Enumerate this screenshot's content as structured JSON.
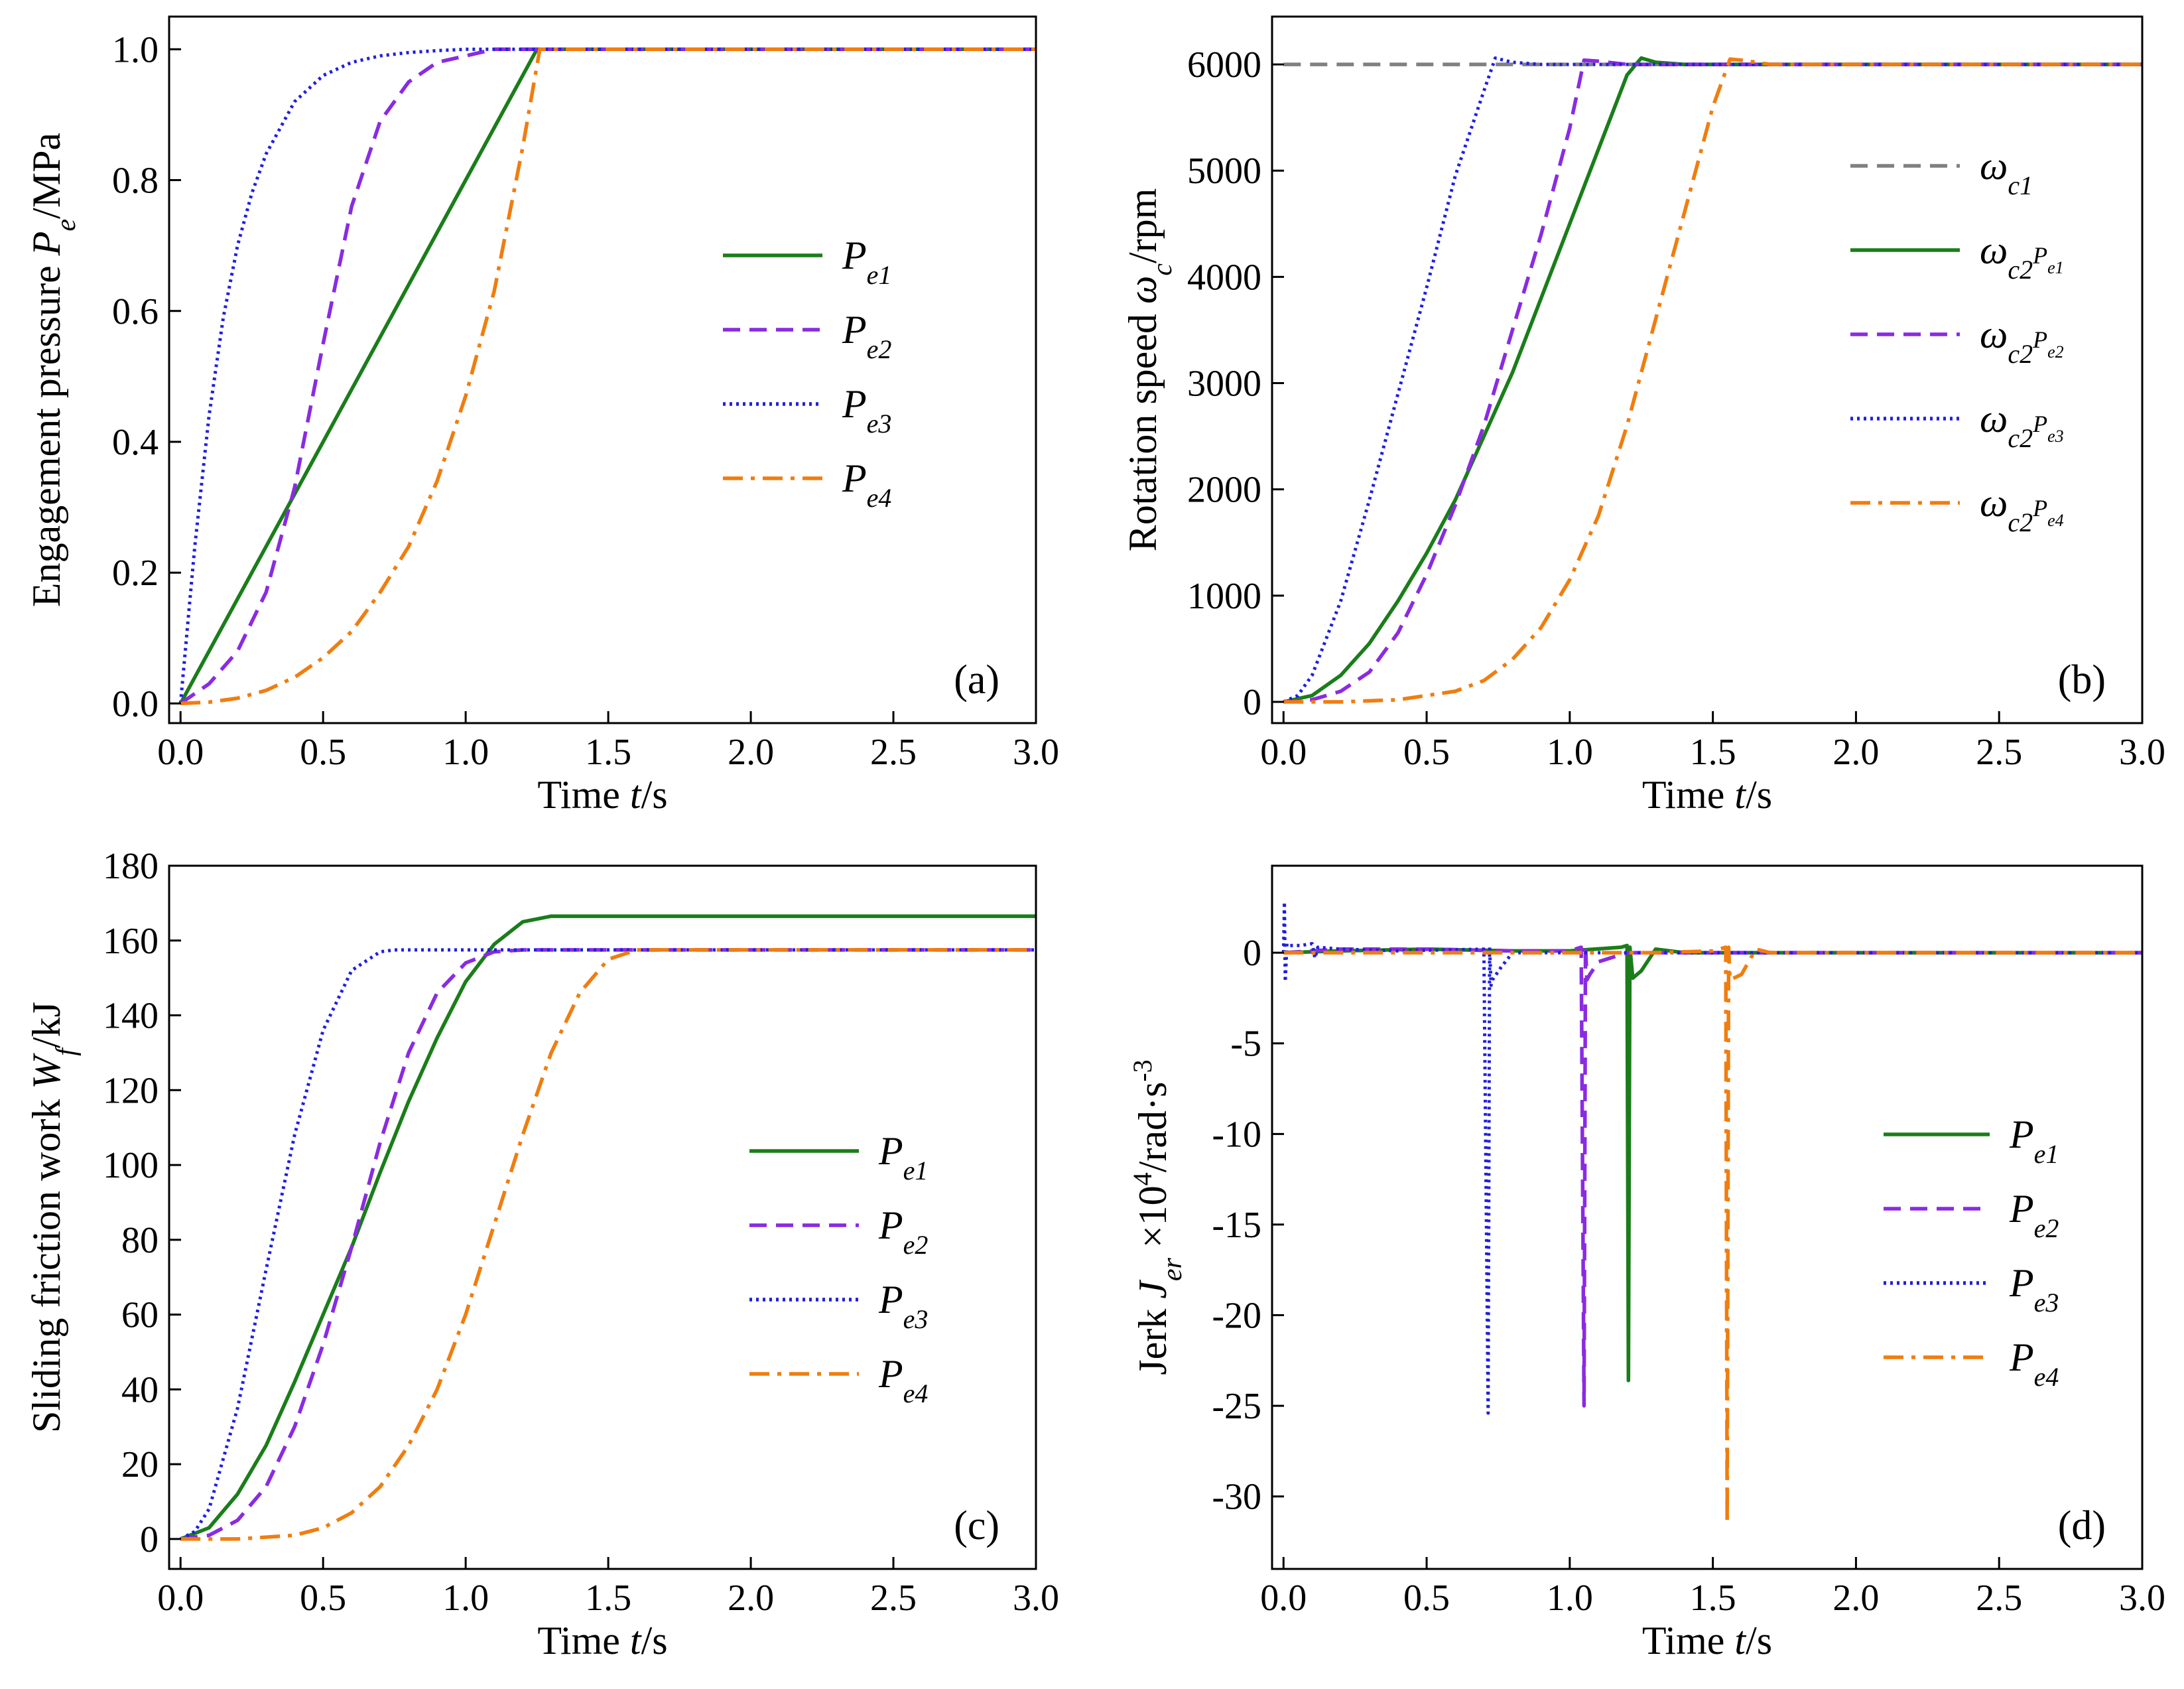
{
  "colors": {
    "pe1": "#1a7d1a",
    "pe2": "#8a2be2",
    "pe3": "#1f1fe0",
    "pe4": "#f07d0f",
    "wc1": "#808080",
    "axis": "#000000"
  },
  "chart_data": [
    {
      "id": "a",
      "type": "line",
      "panel_label": "(a)",
      "ylabel": "Engagement pressure P_e/MPa",
      "ylabel_parts": {
        "pre": "Engagement pressure ",
        "sym": "P",
        "sub": "e",
        "post": "/MPa"
      },
      "xlabel": "Time t/s",
      "xlabel_parts": {
        "pre": "Time ",
        "sym": "t",
        "post": "/s"
      },
      "xlim": [
        -0.04,
        3.0
      ],
      "ylim": [
        -0.03,
        1.05
      ],
      "xticks": [
        "0.0",
        "0.5",
        "1.0",
        "1.5",
        "2.0",
        "2.5",
        "3.0"
      ],
      "xtick_values": [
        0,
        0.5,
        1.0,
        1.5,
        2.0,
        2.5,
        3.0
      ],
      "yticks": [
        "0.0",
        "0.2",
        "0.4",
        "0.6",
        "0.8",
        "1.0"
      ],
      "ytick_values": [
        0,
        0.2,
        0.4,
        0.6,
        0.8,
        1.0
      ],
      "legend_position": "center-right",
      "series": [
        {
          "name": "Pe1",
          "sym": "P",
          "sub": "e1",
          "style": "solid",
          "color_key": "pe1",
          "x": [
            0,
            0.25,
            0.5,
            0.75,
            1.0,
            1.25,
            1.5,
            2.0,
            2.5,
            3.0
          ],
          "y": [
            0.0,
            0.2,
            0.4,
            0.6,
            0.8,
            1.0,
            1.0,
            1.0,
            1.0,
            1.0
          ]
        },
        {
          "name": "Pe2",
          "sym": "P",
          "sub": "e2",
          "style": "dash",
          "color_key": "pe2",
          "x": [
            0,
            0.1,
            0.2,
            0.3,
            0.4,
            0.5,
            0.6,
            0.7,
            0.8,
            0.9,
            1.0,
            1.1,
            1.25,
            1.5,
            2.0,
            2.5,
            3.0
          ],
          "y": [
            0.0,
            0.03,
            0.08,
            0.17,
            0.33,
            0.55,
            0.76,
            0.89,
            0.95,
            0.98,
            0.99,
            1.0,
            1.0,
            1.0,
            1.0,
            1.0,
            1.0
          ]
        },
        {
          "name": "Pe3",
          "sym": "P",
          "sub": "e3",
          "style": "dot",
          "color_key": "pe3",
          "x": [
            0,
            0.025,
            0.05,
            0.1,
            0.15,
            0.2,
            0.25,
            0.3,
            0.4,
            0.5,
            0.6,
            0.7,
            0.8,
            0.9,
            1.0,
            1.2,
            1.5,
            2.0,
            2.5,
            3.0
          ],
          "y": [
            0.0,
            0.12,
            0.24,
            0.44,
            0.59,
            0.7,
            0.78,
            0.84,
            0.92,
            0.96,
            0.98,
            0.99,
            0.995,
            0.998,
            1.0,
            1.0,
            1.0,
            1.0,
            1.0,
            1.0
          ]
        },
        {
          "name": "Pe4",
          "sym": "P",
          "sub": "e4",
          "style": "dashdot",
          "color_key": "pe4",
          "x": [
            0,
            0.1,
            0.2,
            0.3,
            0.4,
            0.5,
            0.6,
            0.7,
            0.8,
            0.9,
            1.0,
            1.1,
            1.2,
            1.26,
            1.5,
            2.0,
            2.5,
            3.0
          ],
          "y": [
            0.0,
            0.002,
            0.008,
            0.02,
            0.04,
            0.07,
            0.11,
            0.17,
            0.24,
            0.34,
            0.47,
            0.63,
            0.85,
            1.0,
            1.0,
            1.0,
            1.0,
            1.0
          ]
        }
      ]
    },
    {
      "id": "b",
      "type": "line",
      "panel_label": "(b)",
      "ylabel": "Rotation speed ω_c/rpm",
      "ylabel_parts": {
        "pre": "Rotation speed ",
        "sym": "ω",
        "sub": "c",
        "post": "/rpm"
      },
      "xlabel": "Time t/s",
      "xlabel_parts": {
        "pre": "Time ",
        "sym": "t",
        "post": "/s"
      },
      "xlim": [
        -0.04,
        3.0
      ],
      "ylim": [
        -200,
        6450
      ],
      "xticks": [
        "0.0",
        "0.5",
        "1.0",
        "1.5",
        "2.0",
        "2.5",
        "3.0"
      ],
      "xtick_values": [
        0,
        0.5,
        1.0,
        1.5,
        2.0,
        2.5,
        3.0
      ],
      "yticks": [
        "0",
        "1000",
        "2000",
        "3000",
        "4000",
        "5000",
        "6000"
      ],
      "ytick_values": [
        0,
        1000,
        2000,
        3000,
        4000,
        5000,
        6000
      ],
      "legend_position": "right",
      "series": [
        {
          "name": "ωc1",
          "sym": "ω",
          "sub": "c1",
          "style": "dash",
          "color_key": "wc1",
          "x": [
            0,
            3.0
          ],
          "y": [
            6000,
            6000
          ]
        },
        {
          "name": "ωc2Pe1",
          "sym": "ω",
          "sub": "c2",
          "subsub": "e1",
          "style": "solid",
          "color_key": "pe1",
          "x": [
            0,
            0.1,
            0.2,
            0.3,
            0.4,
            0.5,
            0.6,
            0.7,
            0.8,
            0.9,
            1.0,
            1.1,
            1.2,
            1.25,
            1.3,
            1.4,
            1.5,
            2.0,
            2.5,
            3.0
          ],
          "y": [
            0,
            60,
            250,
            550,
            950,
            1400,
            1900,
            2500,
            3100,
            3800,
            4500,
            5200,
            5900,
            6060,
            6020,
            6000,
            6000,
            6000,
            6000,
            6000
          ]
        },
        {
          "name": "ωc2Pe2",
          "sym": "ω",
          "sub": "c2",
          "subsub": "e2",
          "style": "dash",
          "color_key": "pe2",
          "x": [
            0,
            0.1,
            0.2,
            0.3,
            0.4,
            0.5,
            0.6,
            0.7,
            0.8,
            0.9,
            1.0,
            1.05,
            1.1,
            1.2,
            1.5,
            2.0,
            2.5,
            3.0
          ],
          "y": [
            0,
            20,
            100,
            280,
            650,
            1200,
            1850,
            2600,
            3500,
            4400,
            5400,
            6040,
            6030,
            6000,
            6000,
            6000,
            6000,
            6000
          ]
        },
        {
          "name": "ωc2Pe3",
          "sym": "ω",
          "sub": "c2",
          "subsub": "e3",
          "style": "dot",
          "color_key": "pe3",
          "x": [
            0,
            0.05,
            0.1,
            0.2,
            0.3,
            0.4,
            0.5,
            0.6,
            0.7,
            0.74,
            0.8,
            0.9,
            1.0,
            1.5,
            2.0,
            2.5,
            3.0
          ],
          "y": [
            0,
            60,
            250,
            950,
            1900,
            2900,
            3900,
            4950,
            5750,
            6060,
            6020,
            6000,
            6000,
            6000,
            6000,
            6000,
            6000
          ]
        },
        {
          "name": "ωc2Pe4",
          "sym": "ω",
          "sub": "c2",
          "subsub": "e4",
          "style": "dashdot",
          "color_key": "pe4",
          "x": [
            0,
            0.2,
            0.4,
            0.6,
            0.7,
            0.8,
            0.9,
            1.0,
            1.1,
            1.2,
            1.3,
            1.4,
            1.5,
            1.56,
            1.6,
            1.7,
            2.0,
            2.5,
            3.0
          ],
          "y": [
            0,
            0,
            20,
            100,
            200,
            400,
            700,
            1150,
            1750,
            2600,
            3600,
            4600,
            5600,
            6050,
            6040,
            6000,
            6000,
            6000,
            6000
          ]
        }
      ]
    },
    {
      "id": "c",
      "type": "line",
      "panel_label": "(c)",
      "ylabel": "Sliding friction work W_f/kJ",
      "ylabel_parts": {
        "pre": "Sliding friction work ",
        "sym": "W",
        "sub": "f",
        "post": "/kJ"
      },
      "xlabel": "Time t/s",
      "xlabel_parts": {
        "pre": "Time ",
        "sym": "t",
        "post": "/s"
      },
      "xlim": [
        -0.04,
        3.0
      ],
      "ylim": [
        -8,
        180
      ],
      "xticks": [
        "0.0",
        "0.5",
        "1.0",
        "1.5",
        "2.0",
        "2.5",
        "3.0"
      ],
      "xtick_values": [
        0,
        0.5,
        1.0,
        1.5,
        2.0,
        2.5,
        3.0
      ],
      "yticks": [
        "0",
        "20",
        "40",
        "60",
        "80",
        "100",
        "120",
        "140",
        "160",
        "180"
      ],
      "ytick_values": [
        0,
        20,
        40,
        60,
        80,
        100,
        120,
        140,
        160,
        180
      ],
      "legend_position": "center-right",
      "series": [
        {
          "name": "Pe1",
          "sym": "P",
          "sub": "e1",
          "style": "solid",
          "color_key": "pe1",
          "x": [
            0,
            0.1,
            0.2,
            0.3,
            0.4,
            0.5,
            0.6,
            0.7,
            0.8,
            0.9,
            1.0,
            1.1,
            1.2,
            1.3,
            1.5,
            2.0,
            2.5,
            3.0
          ],
          "y": [
            0,
            3,
            12,
            25,
            42,
            60,
            78,
            98,
            117,
            134,
            149,
            159,
            165,
            166.5,
            166.5,
            166.5,
            166.5,
            166.5
          ]
        },
        {
          "name": "Pe2",
          "sym": "P",
          "sub": "e2",
          "style": "dash",
          "color_key": "pe2",
          "x": [
            0,
            0.1,
            0.2,
            0.3,
            0.4,
            0.5,
            0.6,
            0.7,
            0.8,
            0.9,
            1.0,
            1.1,
            1.2,
            1.5,
            2.0,
            2.5,
            3.0
          ],
          "y": [
            0,
            1,
            5,
            14,
            30,
            52,
            78,
            106,
            130,
            146,
            154,
            157,
            157.5,
            157.5,
            157.5,
            157.5,
            157.5
          ]
        },
        {
          "name": "Pe3",
          "sym": "P",
          "sub": "e3",
          "style": "dot",
          "color_key": "pe3",
          "x": [
            0,
            0.05,
            0.1,
            0.2,
            0.3,
            0.4,
            0.5,
            0.6,
            0.7,
            0.75,
            0.8,
            1.0,
            1.5,
            2.0,
            2.5,
            3.0
          ],
          "y": [
            0,
            2,
            8,
            35,
            72,
            108,
            136,
            152,
            157,
            157.5,
            157.5,
            157.5,
            157.5,
            157.5,
            157.5,
            157.5
          ]
        },
        {
          "name": "Pe4",
          "sym": "P",
          "sub": "e4",
          "style": "dashdot",
          "color_key": "pe4",
          "x": [
            0,
            0.2,
            0.4,
            0.5,
            0.6,
            0.7,
            0.8,
            0.9,
            1.0,
            1.1,
            1.2,
            1.3,
            1.4,
            1.5,
            1.6,
            2.0,
            2.5,
            3.0
          ],
          "y": [
            0,
            0,
            1,
            3,
            7,
            14,
            25,
            40,
            60,
            84,
            108,
            130,
            146,
            155,
            157.5,
            157.5,
            157.5,
            157.5
          ]
        }
      ]
    },
    {
      "id": "d",
      "type": "line",
      "panel_label": "(d)",
      "ylabel": "Jerk J_er ×10^4/rad·s^-3",
      "ylabel_parts": {
        "pre": "Jerk ",
        "sym": "J",
        "sub": "er",
        "mid": " ×10",
        "sup": "4",
        "post": "/rad·s",
        "sup2": "-3"
      },
      "xlabel": "Time t/s",
      "xlabel_parts": {
        "pre": "Time ",
        "sym": "t",
        "post": "/s"
      },
      "xlim": [
        -0.04,
        3.0
      ],
      "ylim": [
        -34,
        4.8
      ],
      "xticks": [
        "0.0",
        "0.5",
        "1.0",
        "1.5",
        "2.0",
        "2.5",
        "3.0"
      ],
      "xtick_values": [
        0,
        0.5,
        1.0,
        1.5,
        2.0,
        2.5,
        3.0
      ],
      "yticks": [
        "0",
        "-5",
        "-10",
        "-15",
        "-20",
        "-25",
        "-30"
      ],
      "ytick_values": [
        0,
        -5,
        -10,
        -15,
        -20,
        -25,
        -30
      ],
      "legend_position": "center-right",
      "series": [
        {
          "name": "Pe1",
          "sym": "P",
          "sub": "e1",
          "style": "solid",
          "color_key": "pe1",
          "x": [
            0,
            0.2,
            0.5,
            0.8,
            1.0,
            1.18,
            1.2,
            1.205,
            1.21,
            1.215,
            1.22,
            1.25,
            1.3,
            1.4,
            2.0,
            3.0
          ],
          "y": [
            0,
            0.1,
            0.2,
            0.1,
            0.1,
            0.3,
            0.4,
            -23.6,
            0.3,
            -0.5,
            -1.4,
            -1.0,
            0.2,
            0,
            0,
            0
          ]
        },
        {
          "name": "Pe2",
          "sym": "P",
          "sub": "e2",
          "style": "dash",
          "color_key": "pe2",
          "x": [
            0,
            0.2,
            0.5,
            0.8,
            1.0,
            1.04,
            1.05,
            1.055,
            1.06,
            1.07,
            1.1,
            1.2,
            2.0,
            3.0
          ],
          "y": [
            0,
            0.2,
            0.2,
            0.1,
            0.1,
            0.3,
            -25.0,
            0.4,
            -1.5,
            -1.2,
            -0.5,
            0,
            0,
            0
          ]
        },
        {
          "name": "Pe3",
          "sym": "P",
          "sub": "e3",
          "style": "dot",
          "color_key": "pe3",
          "x": [
            0,
            0.003,
            0.006,
            0.012,
            0.02,
            0.06,
            0.1,
            0.11,
            0.12,
            0.2,
            0.4,
            0.7,
            0.715,
            0.72,
            0.725,
            0.73,
            0.76,
            0.8,
            1.0,
            2.0,
            3.0
          ],
          "y": [
            0,
            2.8,
            -1.6,
            0.5,
            0.4,
            0.4,
            0.5,
            -0.3,
            0.3,
            0.2,
            0.1,
            0.2,
            -25.4,
            0.3,
            -1.8,
            -1.5,
            -0.8,
            0,
            0,
            0,
            0
          ]
        },
        {
          "name": "Pe4",
          "sym": "P",
          "sub": "e4",
          "style": "dashdot",
          "color_key": "pe4",
          "x": [
            0,
            0.5,
            1.0,
            1.3,
            1.5,
            1.545,
            1.55,
            1.555,
            1.56,
            1.6,
            1.65,
            1.7,
            2.0,
            3.0
          ],
          "y": [
            0,
            0,
            0,
            0,
            0.1,
            0.3,
            -31.5,
            0.3,
            -1.5,
            -1.2,
            0.2,
            0,
            0,
            0
          ]
        }
      ]
    }
  ]
}
